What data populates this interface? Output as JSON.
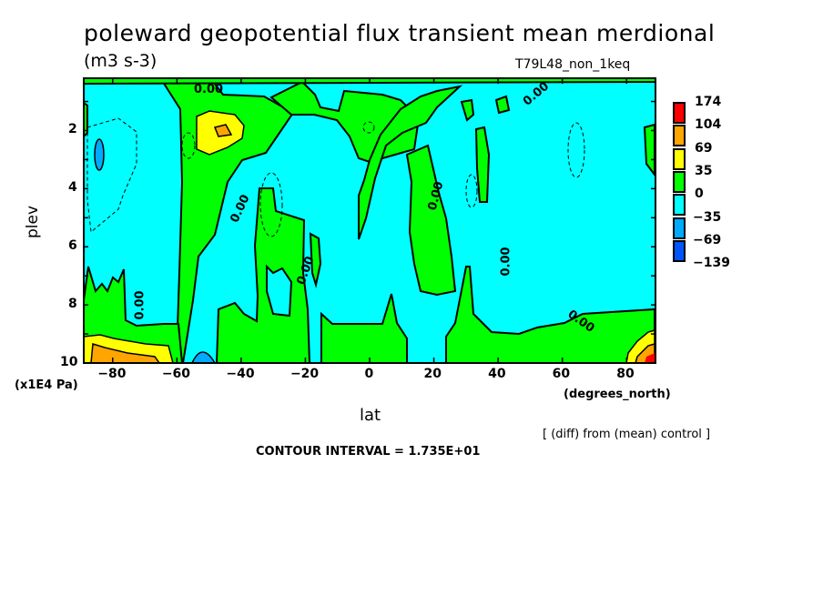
{
  "title": "poleward geopotential flux transient mean merdional",
  "units": "(m3 s-3)",
  "experiment": "T79L48_non_1keq",
  "footer_diff": "[ (diff) from (mean) control ]",
  "contour_interval": "CONTOUR INTERVAL = 1.735E+01",
  "chart_data": {
    "type": "heatmap",
    "subtype": "filled contour",
    "xlabel": "lat",
    "xunit": "(degrees_north)",
    "ylabel": "plev",
    "yunit": "(x1E4 Pa)",
    "xlim": [
      -89,
      89
    ],
    "ylim": [
      10,
      0.2
    ],
    "x_ticks": [
      "-80",
      "-60",
      "-40",
      "-20",
      "0",
      "20",
      "40",
      "60",
      "80"
    ],
    "y_ticks": [
      "2",
      "4",
      "6",
      "8",
      "10"
    ],
    "contour_label": "0.00",
    "legend": {
      "placement": "right",
      "levels": [
        "174",
        "104",
        "69",
        "35",
        "0",
        "-35",
        "-69",
        "-139"
      ],
      "colors": [
        "#ff0000",
        "#ffa500",
        "#ffff00",
        "#00ff00",
        "#00ffff",
        "#00aaff",
        "#0055ff"
      ]
    },
    "features": [
      {
        "region": "lat -38, plev 2",
        "value_range": "69 to 104",
        "sign": "positive max"
      },
      {
        "region": "lat -85 to -55, plev 9-10",
        "value_range": "35 to 104",
        "sign": "positive"
      },
      {
        "region": "lat 80 to 89, plev 9.5-10",
        "value_range": "69 to 174",
        "sign": "positive"
      },
      {
        "region": "lat -83, plev 2.5",
        "value_range": "-35 to -69",
        "sign": "negative"
      },
      {
        "region": "lat -43, plev 10",
        "value_range": "-35 to -69",
        "sign": "negative"
      }
    ]
  }
}
